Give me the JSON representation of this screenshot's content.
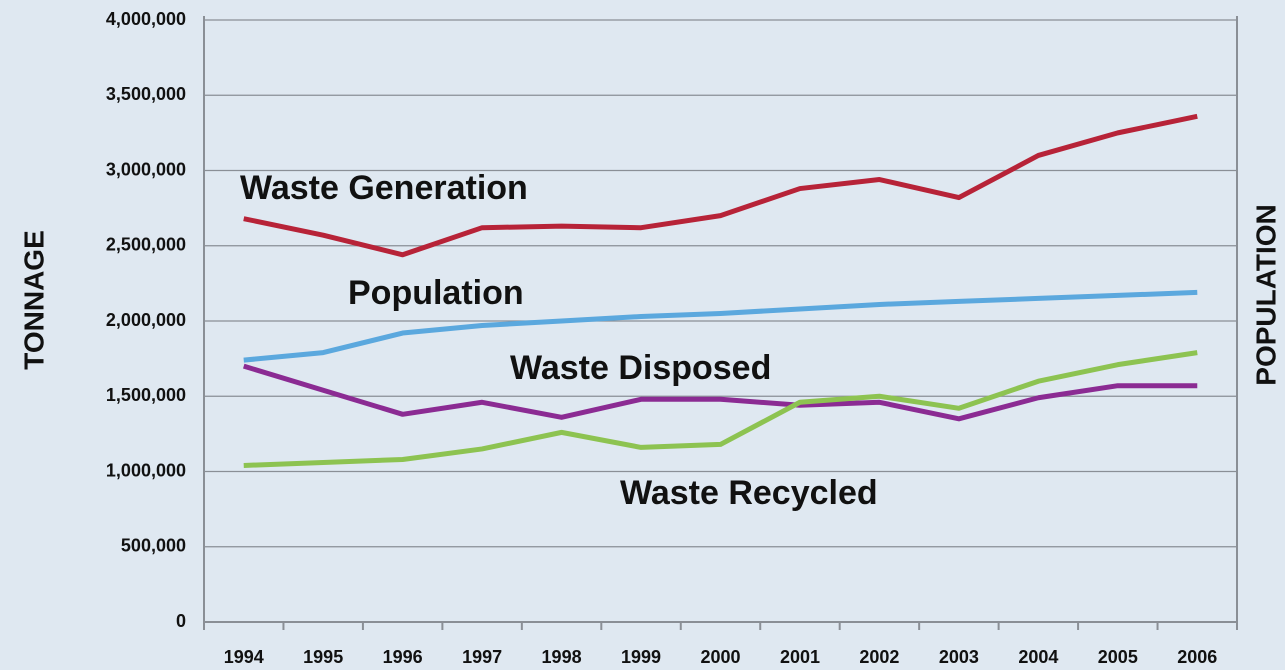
{
  "chart_data": {
    "type": "line",
    "y_label": "TONNAGE",
    "y2_label": "POPULATION",
    "x": [
      "1994",
      "1995",
      "1996",
      "1997",
      "1998",
      "1999",
      "2000",
      "2001",
      "2002",
      "2003",
      "2004",
      "2005",
      "2006"
    ],
    "ylim": [
      0,
      4000000
    ],
    "yticks": [
      0,
      {
        "value": 500000,
        "label": "500,000"
      },
      {
        "value": 1000000,
        "label": "1,000,000"
      },
      {
        "value": 1500000,
        "label": "1,500,000"
      },
      {
        "value": 2000000,
        "label": "2,000,000"
      },
      {
        "value": 2500000,
        "label": "2,500,000"
      },
      {
        "value": 3000000,
        "label": "3,000,000"
      },
      {
        "value": 3500000,
        "label": "3,500,000"
      },
      {
        "value": 4000000,
        "label": "4,000,000"
      }
    ],
    "grid": true,
    "series": [
      {
        "name": "Waste Generation",
        "color": "#b72338",
        "values": [
          2680000,
          2570000,
          2440000,
          2620000,
          2630000,
          2620000,
          2700000,
          2880000,
          2940000,
          2820000,
          3100000,
          3250000,
          3360000
        ]
      },
      {
        "name": "Population",
        "color": "#5ba8de",
        "values": [
          1740000,
          1790000,
          1920000,
          1970000,
          2000000,
          2030000,
          2050000,
          2080000,
          2110000,
          2130000,
          2150000,
          2170000,
          2190000
        ]
      },
      {
        "name": "Waste Disposed",
        "color": "#8b2b93",
        "values": [
          1700000,
          1540000,
          1380000,
          1460000,
          1360000,
          1480000,
          1480000,
          1440000,
          1460000,
          1350000,
          1490000,
          1570000,
          1570000
        ]
      },
      {
        "name": "Waste Recycled",
        "color": "#8dc351",
        "values": [
          1040000,
          1060000,
          1080000,
          1150000,
          1260000,
          1160000,
          1180000,
          1460000,
          1500000,
          1420000,
          1600000,
          1710000,
          1790000
        ]
      }
    ]
  }
}
